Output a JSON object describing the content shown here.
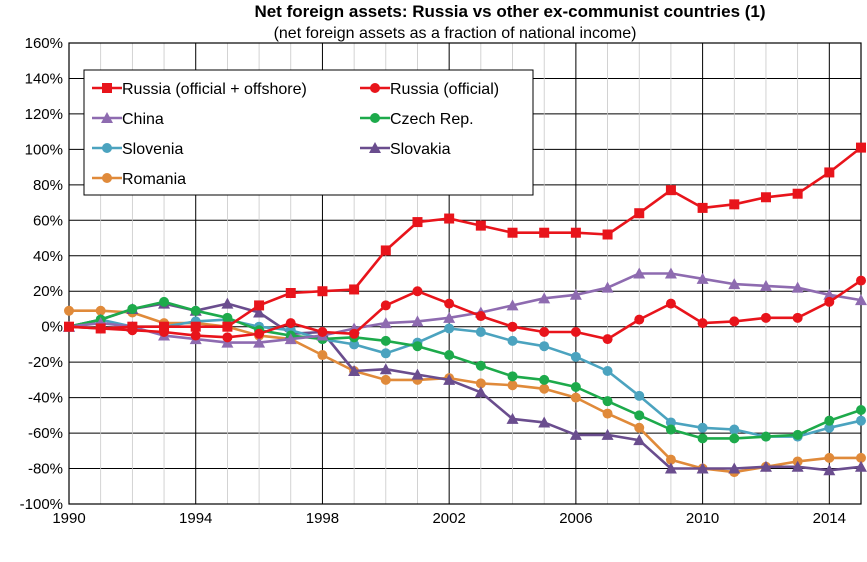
{
  "chart_data": {
    "type": "line",
    "title": "Net foreign assets: Russia vs other ex-communist countries (1)",
    "subtitle": "(net foreign assets as a fraction of national income)",
    "xlabel": "",
    "ylabel": "",
    "xlim": [
      1990,
      2015
    ],
    "ylim": [
      -100,
      160
    ],
    "x_ticks": [
      "1990",
      "1994",
      "1998",
      "2002",
      "2006",
      "2010",
      "2014"
    ],
    "y_ticks": [
      "-100%",
      "-80%",
      "-60%",
      "-40%",
      "-20%",
      "0%",
      "20%",
      "40%",
      "60%",
      "80%",
      "100%",
      "120%",
      "140%",
      "160%"
    ],
    "grid": true,
    "legend_position": "top-left",
    "x": [
      1990,
      1991,
      1992,
      1993,
      1994,
      1995,
      1996,
      1997,
      1998,
      1999,
      2000,
      2001,
      2002,
      2003,
      2004,
      2005,
      2006,
      2007,
      2008,
      2009,
      2010,
      2011,
      2012,
      2013,
      2014,
      2015
    ],
    "series": [
      {
        "name": "Russia (official + offshore)",
        "color": "#e8141b",
        "marker": "square",
        "values": [
          0,
          -1,
          0,
          0,
          0,
          0,
          12,
          19,
          20,
          21,
          43,
          59,
          61,
          57,
          53,
          53,
          53,
          52,
          64,
          77,
          67,
          69,
          73,
          75,
          87,
          101
        ]
      },
      {
        "name": "Russia (official)",
        "color": "#e8141b",
        "marker": "circle",
        "values": [
          0,
          -1,
          -2,
          -3,
          -5,
          -6,
          -4,
          2,
          -3,
          -4,
          12,
          20,
          13,
          6,
          0,
          -3,
          -3,
          -7,
          4,
          13,
          2,
          3,
          5,
          5,
          14,
          26
        ]
      },
      {
        "name": "China",
        "color": "#8e6bb0",
        "marker": "triangle",
        "values": [
          0,
          2,
          0,
          -5,
          -7,
          -9,
          -9,
          -7,
          -5,
          -1,
          2,
          3,
          5,
          8,
          12,
          16,
          18,
          22,
          30,
          30,
          27,
          24,
          23,
          22,
          18,
          15
        ]
      },
      {
        "name": "Czech Rep.",
        "color": "#1daa4b",
        "marker": "circle",
        "values": [
          0,
          4,
          10,
          14,
          9,
          5,
          -2,
          -5,
          -7,
          -6,
          -8,
          -11,
          -16,
          -22,
          -28,
          -30,
          -34,
          -42,
          -50,
          -58,
          -63,
          -63,
          -62,
          -61,
          -53,
          -47
        ]
      },
      {
        "name": "Slovenia",
        "color": "#4ba3bf",
        "marker": "circle",
        "values": [
          0,
          4,
          0,
          0,
          3,
          4,
          0,
          -2,
          -7,
          -10,
          -15,
          -9,
          -1,
          -3,
          -8,
          -11,
          -17,
          -25,
          -39,
          -54,
          -57,
          -58,
          -62,
          -62,
          -57,
          -53
        ]
      },
      {
        "name": "Slovakia",
        "color": "#6a4d8e",
        "marker": "triangle",
        "values": [
          0,
          4,
          10,
          13,
          9,
          13,
          8,
          -4,
          -3,
          -25,
          -24,
          -27,
          -30,
          -37,
          -52,
          -54,
          -61,
          -61,
          -64,
          -80,
          -80,
          -80,
          -79,
          -79,
          -81,
          -79
        ]
      },
      {
        "name": "Romania",
        "color": "#e08a3a",
        "marker": "circle",
        "values": [
          9,
          9,
          8,
          2,
          2,
          0,
          -5,
          -7,
          -16,
          -25,
          -30,
          -30,
          -29,
          -32,
          -33,
          -35,
          -40,
          -49,
          -57,
          -75,
          -80,
          -82,
          -79,
          -76,
          -74,
          -74
        ]
      }
    ]
  }
}
